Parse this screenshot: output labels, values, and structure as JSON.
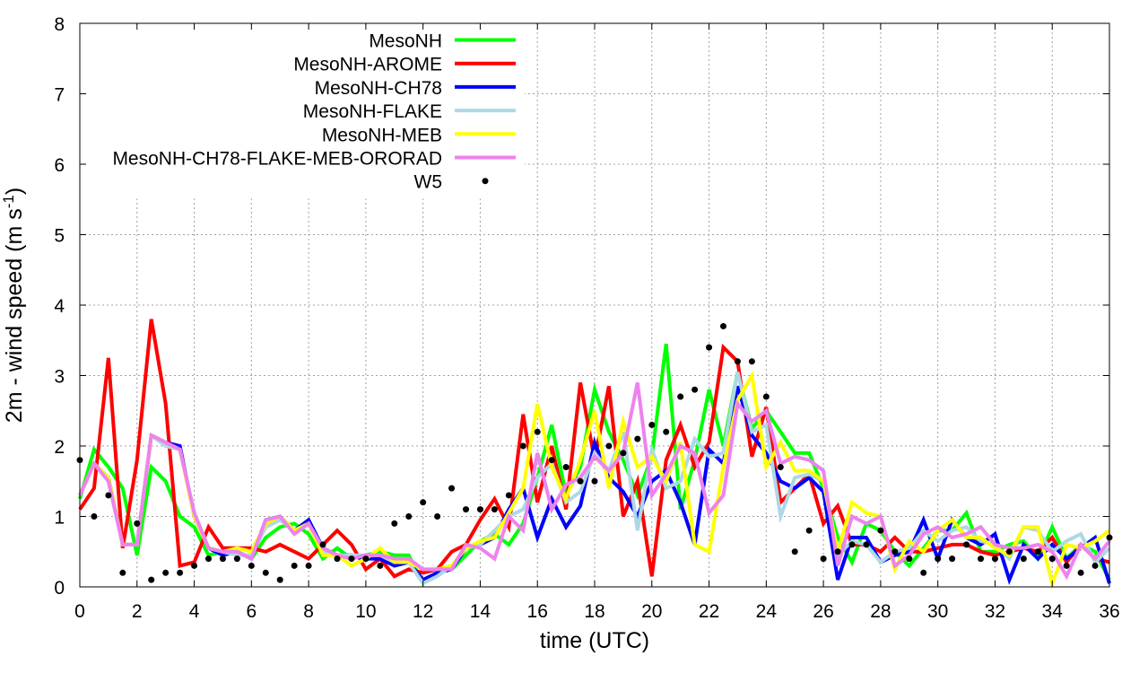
{
  "chart_data": {
    "type": "line",
    "xlabel": "time (UTC)",
    "ylabel": "2m - wind speed  (m s",
    "ylabel_sup": "-1",
    "ylabel_close": ")",
    "xlim": [
      0,
      36
    ],
    "ylim": [
      0,
      8
    ],
    "xticks": [
      0,
      2,
      4,
      6,
      8,
      10,
      12,
      14,
      16,
      18,
      20,
      22,
      24,
      26,
      28,
      30,
      32,
      34,
      36
    ],
    "yticks": [
      0,
      1,
      2,
      3,
      4,
      5,
      6,
      7,
      8
    ],
    "grid": true,
    "legend_position": "top-left",
    "x": [
      0,
      0.5,
      1,
      1.5,
      2,
      2.5,
      3,
      3.5,
      4,
      4.5,
      5,
      5.5,
      6,
      6.5,
      7,
      7.5,
      8,
      8.5,
      9,
      9.5,
      10,
      10.5,
      11,
      11.5,
      12,
      12.5,
      13,
      13.5,
      14,
      14.5,
      15,
      15.5,
      16,
      16.5,
      17,
      17.5,
      18,
      18.5,
      19,
      19.5,
      20,
      20.5,
      21,
      21.5,
      22,
      22.5,
      23,
      23.5,
      24,
      24.5,
      25,
      25.5,
      26,
      26.5,
      27,
      27.5,
      28,
      28.5,
      29,
      29.5,
      30,
      30.5,
      31,
      31.5,
      32,
      32.5,
      33,
      33.5,
      34,
      34.5,
      35,
      35.5,
      36
    ],
    "series": [
      {
        "name": "MesoNH",
        "color": "#00ff00",
        "values": [
          1.25,
          1.95,
          1.7,
          1.4,
          0.45,
          1.7,
          1.5,
          1.0,
          0.85,
          0.45,
          0.5,
          0.5,
          0.4,
          0.7,
          0.85,
          0.9,
          0.75,
          0.4,
          0.55,
          0.4,
          0.45,
          0.5,
          0.45,
          0.45,
          0.05,
          0.2,
          0.25,
          0.45,
          0.65,
          0.75,
          0.6,
          0.9,
          1.55,
          2.3,
          1.3,
          1.7,
          2.8,
          2.2,
          1.8,
          1.3,
          1.85,
          3.45,
          1.1,
          1.8,
          2.8,
          2.0,
          3.05,
          2.25,
          2.5,
          2.2,
          1.9,
          1.9,
          1.4,
          0.7,
          0.35,
          0.9,
          0.8,
          0.5,
          0.3,
          0.55,
          0.8,
          0.8,
          1.05,
          0.5,
          0.5,
          0.6,
          0.65,
          0.4,
          0.85,
          0.4,
          0.6,
          0.5,
          0.1
        ]
      },
      {
        "name": "MesoNH-AROME",
        "color": "#ff0000",
        "values": [
          1.1,
          1.4,
          3.25,
          0.55,
          1.8,
          3.8,
          2.6,
          0.3,
          0.35,
          0.85,
          0.55,
          0.55,
          0.55,
          0.5,
          0.6,
          0.5,
          0.4,
          0.6,
          0.8,
          0.6,
          0.25,
          0.4,
          0.15,
          0.25,
          0.2,
          0.25,
          0.5,
          0.6,
          0.95,
          1.25,
          0.85,
          2.45,
          1.2,
          2.0,
          1.1,
          2.9,
          1.8,
          2.85,
          1.0,
          1.5,
          0.15,
          1.8,
          2.3,
          1.7,
          2.05,
          3.4,
          3.2,
          1.85,
          2.55,
          1.2,
          1.4,
          1.6,
          0.9,
          1.15,
          0.6,
          0.6,
          0.5,
          0.7,
          0.5,
          0.5,
          0.55,
          0.6,
          0.6,
          0.5,
          0.45,
          0.5,
          0.55,
          0.5,
          0.7,
          0.35,
          0.6,
          0.4,
          0.35
        ]
      },
      {
        "name": "MesoNH-CH78",
        "color": "#0000ff",
        "values": [
          1.3,
          1.75,
          1.55,
          0.6,
          0.6,
          2.15,
          2.05,
          2.0,
          1.0,
          0.55,
          0.45,
          0.5,
          0.4,
          0.95,
          1.0,
          0.8,
          0.95,
          0.55,
          0.45,
          0.45,
          0.4,
          0.4,
          0.3,
          0.35,
          0.1,
          0.2,
          0.25,
          0.55,
          0.6,
          0.7,
          1.1,
          1.4,
          0.7,
          1.25,
          0.85,
          1.15,
          2.05,
          1.55,
          1.35,
          1.0,
          1.5,
          1.65,
          1.2,
          0.6,
          1.95,
          1.75,
          2.85,
          2.15,
          1.9,
          1.5,
          1.4,
          1.55,
          1.35,
          0.1,
          0.7,
          0.7,
          0.35,
          0.45,
          0.5,
          0.95,
          0.4,
          0.95,
          0.7,
          0.6,
          0.75,
          0.1,
          0.6,
          0.4,
          0.6,
          0.4,
          0.55,
          0.7,
          0.05
        ]
      },
      {
        "name": "MesoNH-FLAKE",
        "color": "#add8e6",
        "values": [
          1.3,
          1.75,
          1.5,
          0.6,
          0.6,
          2.15,
          2.0,
          1.95,
          1.05,
          0.55,
          0.5,
          0.45,
          0.45,
          0.85,
          0.95,
          0.8,
          0.9,
          0.5,
          0.45,
          0.45,
          0.45,
          0.45,
          0.35,
          0.35,
          0.05,
          0.15,
          0.3,
          0.55,
          0.6,
          0.8,
          1.0,
          1.1,
          1.55,
          1.75,
          1.2,
          1.35,
          1.9,
          1.65,
          2.2,
          0.8,
          1.95,
          1.4,
          1.5,
          2.1,
          1.85,
          1.9,
          3.05,
          2.2,
          2.3,
          1.0,
          1.55,
          1.6,
          1.5,
          0.45,
          0.65,
          0.6,
          0.35,
          0.5,
          0.55,
          0.8,
          0.65,
          0.8,
          0.85,
          0.65,
          0.6,
          0.4,
          0.85,
          0.8,
          0.5,
          0.65,
          0.75,
          0.35,
          0.55
        ]
      },
      {
        "name": "MesoNH-MEB",
        "color": "#ffff00",
        "values": [
          1.3,
          1.75,
          1.55,
          0.6,
          0.6,
          2.15,
          2.05,
          1.95,
          1.0,
          0.55,
          0.5,
          0.55,
          0.5,
          0.9,
          1.0,
          0.8,
          0.9,
          0.45,
          0.45,
          0.3,
          0.4,
          0.55,
          0.35,
          0.35,
          0.25,
          0.25,
          0.3,
          0.55,
          0.65,
          0.7,
          1.05,
          1.4,
          2.6,
          1.7,
          1.25,
          1.8,
          2.5,
          1.4,
          2.35,
          1.7,
          1.85,
          1.5,
          2.05,
          0.6,
          0.5,
          1.7,
          2.65,
          3.0,
          1.7,
          2.05,
          1.65,
          1.65,
          1.5,
          0.5,
          1.2,
          1.05,
          1.0,
          0.25,
          0.65,
          0.5,
          0.8,
          0.95,
          0.7,
          0.7,
          0.55,
          0.45,
          0.85,
          0.85,
          0.05,
          0.6,
          0.55,
          0.65,
          0.8
        ]
      },
      {
        "name": "MesoNH-CH78-FLAKE-MEB-ORORAD",
        "color": "#ee82ee",
        "values": [
          1.3,
          1.75,
          1.5,
          0.6,
          0.6,
          2.15,
          2.05,
          1.95,
          1.05,
          0.55,
          0.5,
          0.5,
          0.4,
          0.95,
          1.0,
          0.75,
          0.9,
          0.55,
          0.45,
          0.4,
          0.45,
          0.45,
          0.4,
          0.4,
          0.25,
          0.25,
          0.25,
          0.6,
          0.55,
          0.4,
          1.0,
          0.8,
          1.9,
          1.1,
          1.45,
          1.55,
          1.85,
          1.65,
          1.9,
          2.9,
          1.3,
          1.6,
          2.0,
          1.9,
          1.05,
          1.3,
          2.6,
          2.35,
          2.5,
          1.75,
          1.85,
          1.8,
          1.65,
          0.3,
          1.0,
          0.9,
          1.0,
          0.3,
          0.45,
          0.75,
          0.85,
          0.7,
          0.75,
          0.85,
          0.6,
          0.55,
          0.55,
          0.6,
          0.5,
          0.15,
          0.6,
          0.4,
          0.65
        ]
      }
    ],
    "observations": {
      "name": "W5",
      "color": "#000000",
      "points": [
        [
          0,
          1.8
        ],
        [
          0.5,
          1.0
        ],
        [
          1,
          1.3
        ],
        [
          1.5,
          0.2
        ],
        [
          2,
          0.9
        ],
        [
          2.5,
          0.1
        ],
        [
          3,
          0.2
        ],
        [
          3.5,
          0.2
        ],
        [
          4,
          0.3
        ],
        [
          4.5,
          0.4
        ],
        [
          5,
          0.4
        ],
        [
          5.5,
          0.4
        ],
        [
          6,
          0.3
        ],
        [
          6.5,
          0.2
        ],
        [
          7,
          0.1
        ],
        [
          7.5,
          0.3
        ],
        [
          8,
          0.3
        ],
        [
          8.5,
          0.6
        ],
        [
          9,
          0.4
        ],
        [
          9.5,
          0.4
        ],
        [
          10,
          0.4
        ],
        [
          10.5,
          0.3
        ],
        [
          11,
          0.9
        ],
        [
          11.5,
          1.0
        ],
        [
          12,
          1.2
        ],
        [
          12.5,
          1.0
        ],
        [
          13,
          1.4
        ],
        [
          13.5,
          1.1
        ],
        [
          14,
          1.1
        ],
        [
          14.5,
          1.1
        ],
        [
          15,
          1.3
        ],
        [
          15.5,
          2.0
        ],
        [
          16,
          2.2
        ],
        [
          16.5,
          1.8
        ],
        [
          17,
          1.7
        ],
        [
          17.5,
          1.5
        ],
        [
          18,
          1.5
        ],
        [
          18.5,
          2.0
        ],
        [
          19,
          1.9
        ],
        [
          19.5,
          2.1
        ],
        [
          20,
          2.3
        ],
        [
          20.5,
          2.2
        ],
        [
          21,
          2.7
        ],
        [
          21.5,
          2.8
        ],
        [
          22,
          3.4
        ],
        [
          22.5,
          3.7
        ],
        [
          23,
          3.2
        ],
        [
          23.5,
          3.2
        ],
        [
          24,
          2.7
        ],
        [
          24.5,
          1.7
        ],
        [
          25,
          0.5
        ],
        [
          25.5,
          0.8
        ],
        [
          26,
          0.4
        ],
        [
          26.5,
          0.5
        ],
        [
          27,
          0.6
        ],
        [
          27.5,
          0.6
        ],
        [
          28,
          0.8
        ],
        [
          28.5,
          0.5
        ],
        [
          29,
          0.4
        ],
        [
          29.5,
          0.2
        ],
        [
          30,
          0.4
        ],
        [
          30.5,
          0.4
        ],
        [
          31,
          0.6
        ],
        [
          31.5,
          0.4
        ],
        [
          32,
          0.4
        ],
        [
          32.5,
          0.5
        ],
        [
          33,
          0.4
        ],
        [
          33.5,
          0.5
        ],
        [
          34,
          0.4
        ],
        [
          34.5,
          0.3
        ],
        [
          35,
          0.2
        ],
        [
          35.5,
          0.3
        ],
        [
          36,
          0.7
        ]
      ]
    }
  }
}
